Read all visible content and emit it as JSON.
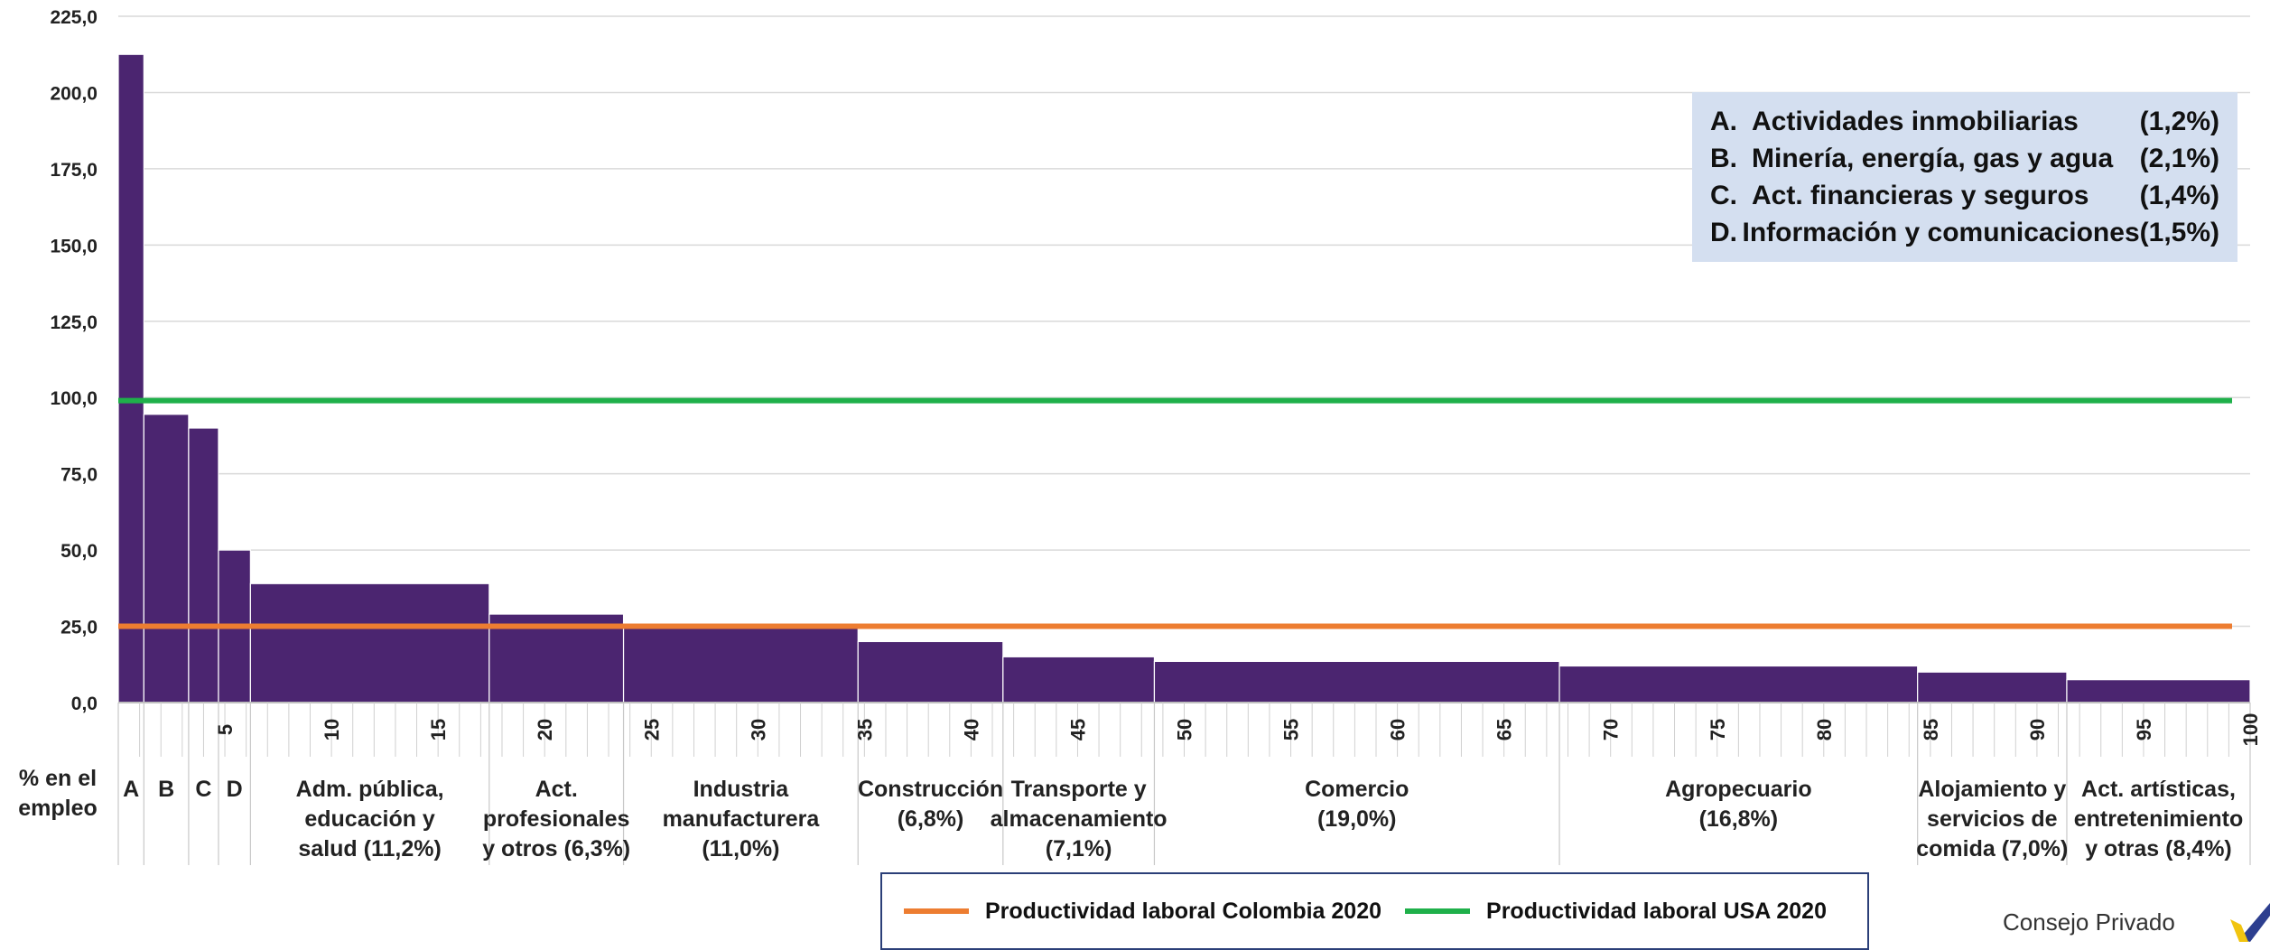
{
  "chart_data": {
    "type": "bar",
    "subtype": "variable-width (marimekko) bars",
    "title": "",
    "xlabel": "",
    "ylabel": "",
    "ylim": [
      0,
      225
    ],
    "xlim": [
      0,
      100
    ],
    "yticks": [
      "0,0",
      "25,0",
      "50,0",
      "75,0",
      "100,0",
      "125,0",
      "150,0",
      "175,0",
      "200,0",
      "225,0"
    ],
    "xticks": [
      "5",
      "10",
      "15",
      "20",
      "25",
      "30",
      "35",
      "40",
      "45",
      "50",
      "55",
      "60",
      "65",
      "70",
      "75",
      "80",
      "85",
      "90",
      "95",
      "100"
    ],
    "row_label": [
      "% en el",
      "empleo"
    ],
    "grid": true,
    "bar_color": "#4b2570",
    "sectors": [
      {
        "label": [
          "A"
        ],
        "x0": 0.0,
        "x1": 1.2,
        "value": 212.5
      },
      {
        "label": [
          "B"
        ],
        "x0": 1.2,
        "x1": 3.3,
        "value": 94.5
      },
      {
        "label": [
          "C"
        ],
        "x0": 3.3,
        "x1": 4.7,
        "value": 90.0
      },
      {
        "label": [
          "D"
        ],
        "x0": 4.7,
        "x1": 6.2,
        "value": 50.0
      },
      {
        "label": [
          "Adm. pública,",
          "educación y",
          "salud (11,2%)"
        ],
        "x0": 6.2,
        "x1": 17.4,
        "value": 39.0
      },
      {
        "label": [
          "Act.",
          "profesionales",
          "y otros (6,3%)"
        ],
        "x0": 17.4,
        "x1": 23.7,
        "value": 29.0
      },
      {
        "label": [
          "Industria",
          "manufacturera",
          "(11,0%)"
        ],
        "x0": 23.7,
        "x1": 34.7,
        "value": 26.0
      },
      {
        "label": [
          "Construcción",
          "(6,8%)"
        ],
        "x0": 34.7,
        "x1": 41.5,
        "value": 20.0
      },
      {
        "label": [
          "Transporte y",
          "almacenamiento",
          "(7,1%)"
        ],
        "x0": 41.5,
        "x1": 48.6,
        "value": 15.0
      },
      {
        "label": [
          "Comercio",
          "(19,0%)"
        ],
        "x0": 48.6,
        "x1": 67.6,
        "value": 13.5
      },
      {
        "label": [
          "Agropecuario",
          "(16,8%)"
        ],
        "x0": 67.6,
        "x1": 84.4,
        "value": 12.0
      },
      {
        "label": [
          "Alojamiento y",
          "servicios de",
          "comida (7,0%)"
        ],
        "x0": 84.4,
        "x1": 91.4,
        "value": 10.0
      },
      {
        "label": [
          "Act. artísticas,",
          "entretenimiento",
          "y otras (8,4%)"
        ],
        "x0": 91.4,
        "x1": 100.0,
        "value": 7.5
      }
    ],
    "reference_lines": [
      {
        "name": "Productividad laboral Colombia 2020",
        "value": 25.0,
        "color": "#ed7d31"
      },
      {
        "name": "Productividad laboral USA 2020",
        "value": 99.0,
        "color": "#1fb04a"
      }
    ],
    "legend_placement": "bottom"
  },
  "callout": [
    {
      "key": "A.",
      "name": "Actividades inmobiliarias",
      "share": "(1,2%)"
    },
    {
      "key": "B.",
      "name": "Minería, energía, gas y agua",
      "share": "(2,1%)"
    },
    {
      "key": "C.",
      "name": "Act. financieras y seguros",
      "share": "(1,4%)"
    },
    {
      "key": "D.",
      "name": "Información y comunicaciones",
      "share": "(1,5%)"
    }
  ],
  "legend": {
    "colombia_label": "Productividad laboral Colombia 2020",
    "usa_label": "Productividad laboral USA 2020"
  },
  "brand": {
    "text": "Consejo Privado"
  }
}
